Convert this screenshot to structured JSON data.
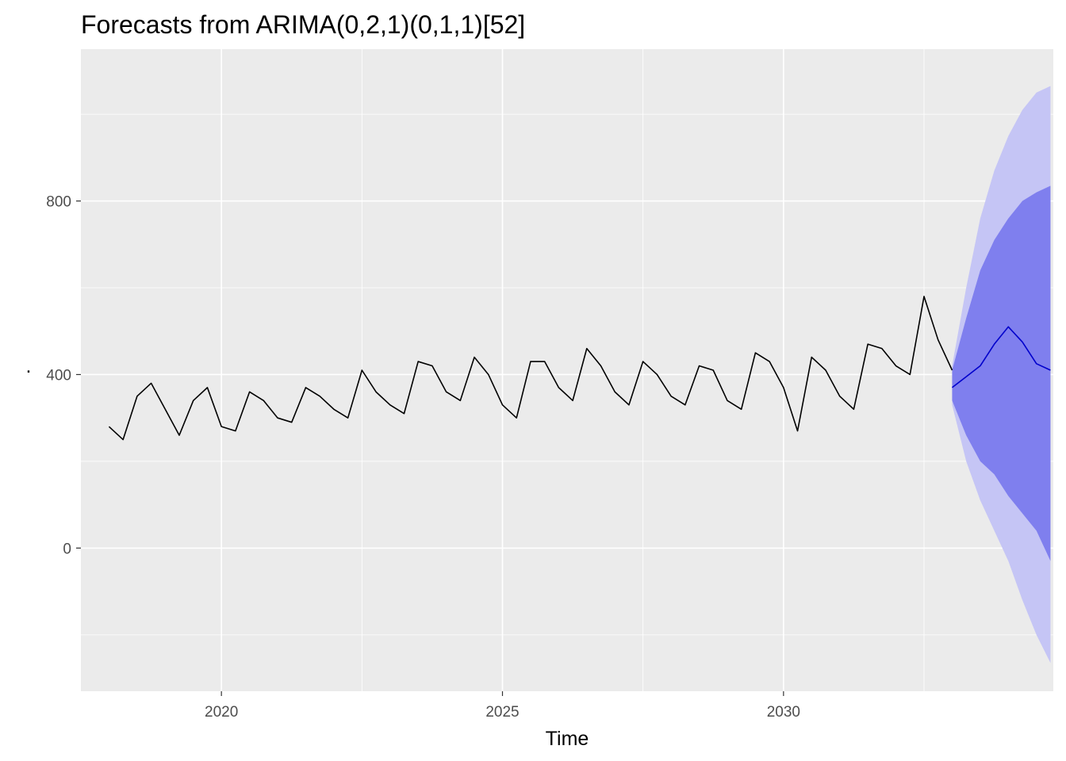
{
  "chart_data": {
    "type": "line",
    "title": "Forecasts from ARIMA(0,2,1)(0,1,1)[52]",
    "xlabel": "Time",
    "ylabel": ".",
    "xlim": [
      2017.5,
      2034.8
    ],
    "ylim": [
      -330,
      1150
    ],
    "x_ticks": [
      2020,
      2025,
      2030
    ],
    "x_tick_labels": [
      "2020",
      "2025",
      "2030"
    ],
    "y_ticks": [
      0,
      400,
      800
    ],
    "y_tick_labels": [
      "0",
      "400",
      "800"
    ],
    "grid": true,
    "series": [
      {
        "name": "observed",
        "kind": "line",
        "color": "#000000",
        "x": [
          2018.0,
          2018.25,
          2018.5,
          2018.75,
          2019.0,
          2019.25,
          2019.5,
          2019.75,
          2020.0,
          2020.25,
          2020.5,
          2020.75,
          2021.0,
          2021.25,
          2021.5,
          2021.75,
          2022.0,
          2022.25,
          2022.5,
          2022.75,
          2023.0,
          2023.25,
          2023.5,
          2023.75,
          2024.0,
          2024.25,
          2024.5,
          2024.75,
          2025.0,
          2025.25,
          2025.5,
          2025.75,
          2026.0,
          2026.25,
          2026.5,
          2026.75,
          2027.0,
          2027.25,
          2027.5,
          2027.75,
          2028.0,
          2028.25,
          2028.5,
          2028.75,
          2029.0,
          2029.25,
          2029.5,
          2029.75,
          2030.0,
          2030.25,
          2030.5,
          2030.75,
          2031.0,
          2031.25,
          2031.5,
          2031.75,
          2032.0,
          2032.25,
          2032.5,
          2032.75,
          2033.0
        ],
        "values": [
          280,
          250,
          350,
          380,
          320,
          260,
          340,
          370,
          280,
          270,
          360,
          340,
          300,
          290,
          370,
          350,
          320,
          300,
          410,
          360,
          330,
          310,
          430,
          420,
          360,
          340,
          440,
          400,
          330,
          300,
          430,
          430,
          370,
          340,
          460,
          420,
          360,
          330,
          430,
          400,
          350,
          330,
          420,
          410,
          340,
          320,
          450,
          430,
          370,
          270,
          440,
          410,
          350,
          320,
          470,
          460,
          420,
          400,
          580,
          480,
          410
        ]
      },
      {
        "name": "forecast mean",
        "kind": "line",
        "color": "#0000cc",
        "x": [
          2033.0,
          2033.25,
          2033.5,
          2033.75,
          2034.0,
          2034.25,
          2034.5,
          2034.75
        ],
        "values": [
          370,
          395,
          420,
          470,
          510,
          475,
          425,
          410
        ]
      },
      {
        "name": "80% interval",
        "kind": "band",
        "color": "#7f7fee",
        "x": [
          2033.0,
          2033.25,
          2033.5,
          2033.75,
          2034.0,
          2034.25,
          2034.5,
          2034.75
        ],
        "lower": [
          340,
          260,
          200,
          170,
          120,
          80,
          40,
          -30
        ],
        "upper": [
          410,
          530,
          640,
          710,
          760,
          800,
          820,
          835
        ]
      },
      {
        "name": "95% interval",
        "kind": "band",
        "color": "#c5c5f5",
        "x": [
          2033.0,
          2033.25,
          2033.5,
          2033.75,
          2034.0,
          2034.25,
          2034.5,
          2034.75
        ],
        "lower": [
          330,
          200,
          110,
          40,
          -30,
          -120,
          -200,
          -265
        ],
        "upper": [
          420,
          600,
          760,
          870,
          950,
          1010,
          1050,
          1065
        ]
      }
    ],
    "panel_color": "#ebebeb",
    "grid_color": "#ffffff"
  }
}
